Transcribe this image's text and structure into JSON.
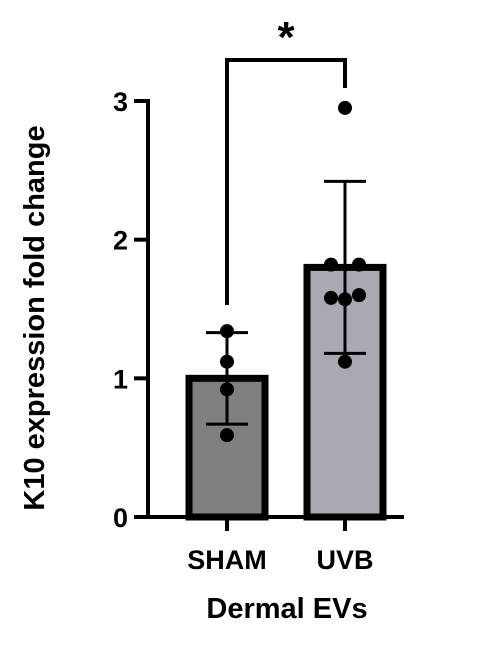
{
  "chart_data": {
    "type": "bar",
    "categories": [
      "SHAM",
      "UVB"
    ],
    "values": [
      1.0,
      1.8
    ],
    "error": [
      0.33,
      0.62
    ],
    "points": [
      [
        1.34,
        1.12,
        0.92,
        0.59
      ],
      [
        2.95,
        1.82,
        1.82,
        1.58,
        1.6,
        1.57,
        1.12
      ]
    ],
    "bar_colors": [
      "#808080",
      "#a9a9b1"
    ],
    "xlabel": "Dermal EVs",
    "ylabel": "K10 expression fold change",
    "ylim": [
      0,
      3
    ],
    "yticks": [
      "0",
      "1",
      "2",
      "3"
    ],
    "significance": {
      "between": [
        0,
        1
      ],
      "label": "*"
    },
    "grid": false
  }
}
